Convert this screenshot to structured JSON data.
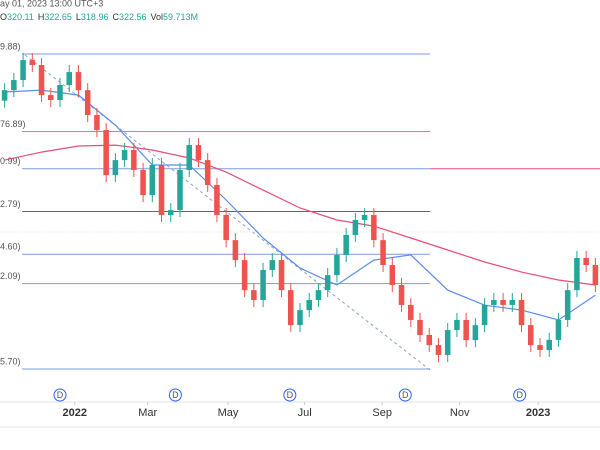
{
  "header": {
    "datetime": "ay 01, 2023 13:00 UTC+3",
    "ohlc": [
      {
        "label": "O",
        "value": "320.11"
      },
      {
        "label": "H",
        "value": "322.65"
      },
      {
        "label": "L",
        "value": "318.96"
      },
      {
        "label": "C",
        "value": "322.56"
      },
      {
        "label": "Vol",
        "value": "59.713M"
      }
    ]
  },
  "chart_data": {
    "type": "candlestick",
    "xlim": [
      -0.5,
      64.5
    ],
    "ylim": [
      202.5,
      372.9
    ],
    "xticks": [
      {
        "value": 7.6,
        "label": "2022"
      },
      {
        "value": 15.5,
        "label": "Mar"
      },
      {
        "value": 24.2,
        "label": "May"
      },
      {
        "value": 32.5,
        "label": "Jul"
      },
      {
        "value": 40.9,
        "label": "Sep"
      },
      {
        "value": 49.3,
        "label": "Nov"
      },
      {
        "value": 57.8,
        "label": "2023"
      }
    ],
    "up_color": "#26a69a",
    "down_color": "#ef5350",
    "open": [
      330.0,
      334.5,
      338.8,
      347.3,
      345.2,
      332.4,
      330.3,
      336.7,
      342.2,
      334.5,
      323.9,
      317.5,
      298.3,
      304.7,
      309.0,
      300.5,
      289.8,
      302.6,
      281.3,
      283.4,
      300.5,
      311.1,
      304.7,
      294.1,
      281.3,
      270.6,
      262.1,
      249.3,
      245.1,
      257.9,
      262.1,
      249.3,
      234.4,
      240.8,
      245.1,
      249.3,
      255.7,
      264.3,
      272.8,
      279.2,
      281.3,
      270.6,
      260.0,
      251.5,
      243.0,
      236.6,
      230.2,
      225.9,
      221.7,
      232.3,
      236.6,
      228.0,
      234.4,
      243.0,
      245.1,
      243.0,
      245.1,
      234.4,
      225.9,
      223.8,
      228.1,
      236.6,
      249.3,
      263.0,
      260.0
    ],
    "high": [
      337.5,
      341.8,
      350.3,
      350.3,
      348.2,
      335.4,
      339.7,
      345.2,
      345.2,
      337.5,
      326.9,
      320.5,
      307.7,
      312.0,
      312.0,
      303.5,
      305.6,
      305.6,
      286.4,
      303.5,
      314.1,
      314.1,
      307.7,
      297.1,
      284.3,
      273.6,
      265.1,
      252.3,
      260.9,
      265.1,
      265.1,
      252.3,
      243.8,
      248.1,
      252.3,
      258.7,
      267.3,
      275.8,
      282.2,
      284.3,
      284.3,
      273.6,
      263.0,
      254.5,
      246.0,
      239.6,
      233.2,
      228.9,
      235.3,
      239.6,
      239.6,
      237.4,
      246.0,
      248.1,
      248.1,
      248.1,
      248.1,
      237.4,
      228.9,
      231.1,
      239.6,
      252.3,
      266.0,
      266.0,
      263.0
    ],
    "low": [
      327.0,
      331.5,
      335.8,
      342.2,
      329.4,
      327.3,
      327.3,
      333.7,
      331.5,
      320.9,
      314.5,
      295.3,
      295.3,
      301.7,
      297.5,
      286.8,
      286.8,
      278.3,
      278.3,
      280.4,
      297.5,
      301.7,
      291.1,
      278.3,
      267.6,
      259.1,
      246.3,
      242.1,
      242.1,
      254.9,
      246.3,
      231.4,
      231.4,
      237.8,
      242.1,
      246.3,
      252.7,
      261.3,
      269.8,
      276.2,
      267.6,
      257.0,
      248.5,
      240.0,
      233.6,
      227.2,
      222.9,
      218.7,
      218.7,
      229.3,
      225.0,
      225.0,
      231.4,
      240.0,
      240.0,
      240.0,
      231.4,
      222.9,
      220.8,
      220.8,
      225.1,
      233.6,
      246.3,
      257.0,
      248.5
    ],
    "close": [
      334.5,
      338.8,
      347.3,
      345.2,
      332.4,
      330.3,
      336.7,
      342.2,
      334.5,
      323.9,
      317.5,
      298.3,
      304.7,
      309.0,
      300.5,
      289.8,
      302.6,
      281.3,
      283.4,
      300.5,
      311.1,
      304.7,
      294.1,
      281.3,
      270.6,
      262.1,
      249.3,
      245.1,
      257.9,
      262.1,
      249.3,
      234.4,
      240.8,
      245.1,
      249.3,
      255.7,
      264.3,
      272.8,
      279.2,
      281.3,
      270.6,
      260.0,
      251.5,
      243.0,
      236.6,
      230.2,
      225.9,
      221.7,
      232.3,
      236.6,
      228.0,
      234.4,
      243.0,
      245.1,
      243.0,
      245.1,
      234.4,
      225.9,
      223.8,
      228.1,
      236.6,
      249.3,
      263.0,
      260.0,
      251.5
    ],
    "moving_averages": [
      {
        "color": "#5b8def",
        "x": [
          0,
          4,
          8,
          12,
          16,
          20,
          24,
          28,
          32,
          36,
          40,
          44,
          48,
          52,
          56,
          60,
          64
        ],
        "values": [
          333.7,
          334.5,
          332.4,
          319.6,
          302.6,
          302.6,
          287.7,
          271.5,
          258.7,
          251.5,
          262.1,
          264.3,
          249.3,
          242.9,
          240.8,
          236.6,
          247.2
        ]
      },
      {
        "color": "#e84d7a",
        "x": [
          0,
          4,
          8,
          12,
          16,
          20,
          24,
          28,
          32,
          36,
          40,
          44,
          48,
          52,
          56,
          60,
          64
        ],
        "values": [
          304.7,
          308.1,
          310.7,
          311.1,
          309.0,
          305.6,
          299.6,
          291.9,
          284.3,
          279.2,
          276.6,
          271.5,
          266.4,
          261.3,
          257.0,
          253.6,
          251.5
        ]
      }
    ],
    "fib_levels": {
      "x_range": [
        1.9,
        46.1
      ],
      "levels": [
        {
          "value": 349.88,
          "label": "9.88)",
          "color": "#7b9be0"
        },
        {
          "value": 316.89,
          "label": "76.89)",
          "color": "#7b9be0"
        },
        {
          "value": 300.99,
          "label": "0.99)",
          "color": "#7b9be0"
        },
        {
          "value": 282.79,
          "label": "2.79)",
          "color": "#666666"
        },
        {
          "value": 264.6,
          "label": "4.60)",
          "color": "#7b9be0"
        },
        {
          "value": 252.09,
          "label": "2.09)",
          "color": "#7b9be0"
        },
        {
          "value": 215.7,
          "label": "5.70)",
          "color": "#7b9be0"
        }
      ]
    },
    "dividend_markers": {
      "label": "D",
      "x": [
        6.0,
        18.5,
        30.9,
        43.4,
        55.8
      ],
      "color": "#2962ff"
    }
  }
}
